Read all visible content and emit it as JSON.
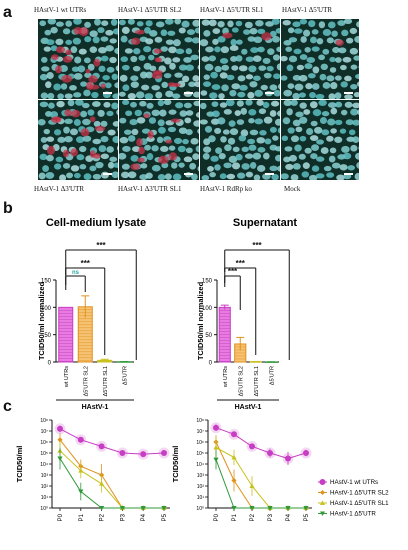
{
  "panel_letters": {
    "a": "a",
    "b": "b",
    "c": "c"
  },
  "micrograph_labels": {
    "top": [
      "HAstV-1 wt UTRs",
      "HAstV-1 Δ5'UTR SL2",
      "HAstV-1 Δ5'UTR SL1",
      "HAstV-1 Δ5'UTR"
    ],
    "bottom": [
      "HAstV-1 Δ3'UTR",
      "HAstV-1 Δ3'UTR SL1",
      "HAstV-1 RdRp ko",
      "Mock"
    ]
  },
  "colors": {
    "wt": "#c73ec4",
    "sl2": "#e0911e",
    "sl1": "#c8c21e",
    "d5": "#2f9a3a",
    "nucleus": "#4fc6c6",
    "infected": "#c8334a",
    "ns": "#2aa6a6"
  },
  "chart_data": [
    {
      "type": "bar",
      "title": "Cell-medium lysate",
      "ylabel": "TCID50/ml normalized",
      "ylim": [
        0,
        150
      ],
      "yticks": [
        "0",
        "50",
        "100",
        "150"
      ],
      "categories": [
        "wt UTRs",
        "Δ5'UTR SL2",
        "Δ5'UTR SL1",
        "Δ5'UTR"
      ],
      "values": [
        100,
        101,
        3,
        0.5
      ],
      "errors": [
        0,
        20,
        2,
        0.3
      ],
      "group_label": "HAstV-1",
      "significance": [
        {
          "from": 0,
          "to": 1,
          "label": "ns"
        },
        {
          "from": 0,
          "to": 2,
          "label": "***"
        },
        {
          "from": 0,
          "to": 3,
          "label": "***"
        }
      ]
    },
    {
      "type": "bar",
      "title": "Supernatant",
      "ylabel": "TCID50/ml normalized",
      "ylim": [
        0,
        150
      ],
      "yticks": [
        "0",
        "50",
        "100",
        "150"
      ],
      "categories": [
        "wt UTRs",
        "Δ5'UTR SL2",
        "Δ5'UTR SL1",
        "Δ5'UTR"
      ],
      "values": [
        100,
        33,
        0.5,
        0.2
      ],
      "errors": [
        4,
        12,
        0.5,
        0.2
      ],
      "group_label": "HAstV-1",
      "significance": [
        {
          "from": 0,
          "to": 1,
          "label": "***"
        },
        {
          "from": 0,
          "to": 2,
          "label": "***"
        },
        {
          "from": 0,
          "to": 3,
          "label": "***"
        }
      ]
    },
    {
      "type": "line",
      "ylabel": "TCID50/ml",
      "yscale": "log",
      "ylim_exp": [
        0,
        8
      ],
      "ytick_labels": [
        "10⁰",
        "10¹",
        "10²",
        "10³",
        "10⁴",
        "10⁵",
        "10⁶",
        "10⁷",
        "10⁸"
      ],
      "x": [
        "P0",
        "P1",
        "P2",
        "P3",
        "P4",
        "P5"
      ],
      "series": [
        {
          "name": "HAstV-1 wt UTRs",
          "key": "wt",
          "marker": "circle",
          "log_values": [
            7.2,
            6.2,
            5.6,
            5.0,
            4.9,
            5.0
          ],
          "err": [
            0.3,
            0.25,
            0.2,
            0.15,
            0.15,
            0.15
          ]
        },
        {
          "name": "HAstV-1 Δ5'UTR SL2",
          "key": "sl2",
          "marker": "diamond",
          "log_values": [
            6.2,
            3.8,
            3.0,
            0.0,
            0.0,
            0.0
          ],
          "err": [
            0.6,
            0.6,
            1.0,
            0,
            0,
            0
          ]
        },
        {
          "name": "HAstV-1 Δ5'UTR SL1",
          "key": "sl1",
          "marker": "triangle",
          "log_values": [
            5.2,
            3.4,
            2.2,
            0.0,
            0.0,
            0.0
          ],
          "err": [
            0.9,
            0.7,
            0.8,
            0,
            0,
            0
          ]
        },
        {
          "name": "HAstV-1 Δ5'UTR",
          "key": "d5",
          "marker": "triangle-down",
          "log_values": [
            4.5,
            1.5,
            0.0,
            0.0,
            0.0,
            0.0
          ],
          "err": [
            1.0,
            0.8,
            0,
            0,
            0,
            0
          ]
        }
      ]
    },
    {
      "type": "line",
      "ylabel": "TCID50/ml",
      "yscale": "log",
      "ylim_exp": [
        0,
        8
      ],
      "ytick_labels": [
        "10⁰",
        "10¹",
        "10²",
        "10³",
        "10⁴",
        "10⁵",
        "10⁶",
        "10⁷",
        "10⁸"
      ],
      "x": [
        "P0",
        "P1",
        "P2",
        "P3",
        "P4",
        "P5"
      ],
      "legend": "right",
      "series": [
        {
          "name": "HAstV-1 wt UTRs",
          "key": "wt",
          "marker": "circle",
          "log_values": [
            7.3,
            6.7,
            5.6,
            5.0,
            4.5,
            5.0
          ],
          "err": [
            0.3,
            0.2,
            0.2,
            0.4,
            0.6,
            0.3
          ]
        },
        {
          "name": "HAstV-1 Δ5'UTR SL2",
          "key": "sl2",
          "marker": "diamond",
          "log_values": [
            6.0,
            2.5,
            0.0,
            0.0,
            0.0,
            0.0
          ],
          "err": [
            0.6,
            1.0,
            0,
            0,
            0,
            0
          ]
        },
        {
          "name": "HAstV-1 Δ5'UTR SL1",
          "key": "sl1",
          "marker": "triangle",
          "log_values": [
            5.5,
            4.6,
            2.0,
            0.0,
            0.0,
            0.0
          ],
          "err": [
            0.8,
            0.7,
            0.9,
            0,
            0,
            0
          ]
        },
        {
          "name": "HAstV-1 Δ5'UTR",
          "key": "d5",
          "marker": "triangle-down",
          "log_values": [
            4.4,
            0.0,
            0.0,
            0.0,
            0.0,
            0.0
          ],
          "err": [
            0.9,
            0,
            0,
            0,
            0,
            0
          ]
        }
      ]
    }
  ]
}
